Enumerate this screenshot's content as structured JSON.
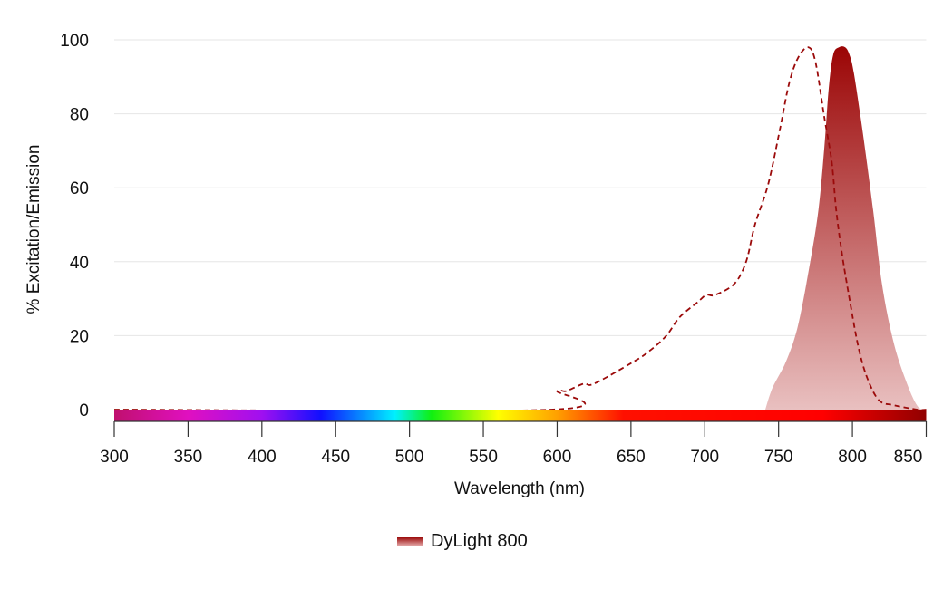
{
  "chart_data": {
    "type": "area",
    "title": "",
    "xlabel": "Wavelength (nm)",
    "ylabel": "% Excitation/Emission",
    "xlim": [
      300,
      850
    ],
    "ylim": [
      0,
      100
    ],
    "xticks": [
      300,
      350,
      400,
      450,
      500,
      550,
      600,
      650,
      700,
      750,
      800,
      850
    ],
    "yticks": [
      0,
      20,
      40,
      60,
      80,
      100
    ],
    "grid": true,
    "legend_position": "bottom",
    "legend": [
      "DyLight 800"
    ],
    "colors": {
      "series": "#9b0a0a",
      "fill_bottom": "#e9b5b5",
      "grid": "#e6e6e6"
    },
    "spectrum_bar": [
      {
        "nm": 300,
        "color": "#c0106e"
      },
      {
        "nm": 350,
        "color": "#e010c0"
      },
      {
        "nm": 400,
        "color": "#a010f0"
      },
      {
        "nm": 440,
        "color": "#1010ff"
      },
      {
        "nm": 490,
        "color": "#00f0ff"
      },
      {
        "nm": 515,
        "color": "#10f010"
      },
      {
        "nm": 560,
        "color": "#ffff00"
      },
      {
        "nm": 600,
        "color": "#ffa000"
      },
      {
        "nm": 645,
        "color": "#ff1000"
      },
      {
        "nm": 780,
        "color": "#ff0000"
      },
      {
        "nm": 850,
        "color": "#900000"
      }
    ],
    "series": [
      {
        "name": "DyLight 800",
        "kind": "excitation",
        "style": "dashed",
        "x": [
          300,
          596,
          600,
          606,
          618,
          625,
          652,
          663,
          674,
          683,
          695,
          701,
          707,
          720,
          728,
          734,
          743,
          751,
          757,
          763,
          770,
          775,
          781,
          786,
          789,
          793,
          798,
          804,
          810,
          818,
          828,
          844,
          850
        ],
        "y": [
          0,
          0,
          5,
          5,
          7,
          7,
          13,
          16,
          20,
          25,
          29,
          31,
          31,
          34,
          40,
          50,
          61,
          76,
          88,
          95,
          98,
          94,
          79,
          67,
          54,
          42,
          30,
          17,
          8.6,
          2.5,
          1.2,
          0,
          0
        ]
      },
      {
        "name": "DyLight 800",
        "kind": "emission",
        "style": "filled",
        "x": [
          741,
          746,
          755,
          763,
          771,
          777,
          781,
          784,
          787,
          791,
          795,
          798,
          801,
          807,
          814,
          820,
          828,
          837,
          844,
          849
        ],
        "y": [
          0,
          6,
          13,
          22.5,
          39,
          54,
          71,
          87,
          96,
          98,
          98,
          96,
          91,
          75,
          54,
          34,
          18,
          7,
          1,
          0
        ]
      }
    ]
  }
}
